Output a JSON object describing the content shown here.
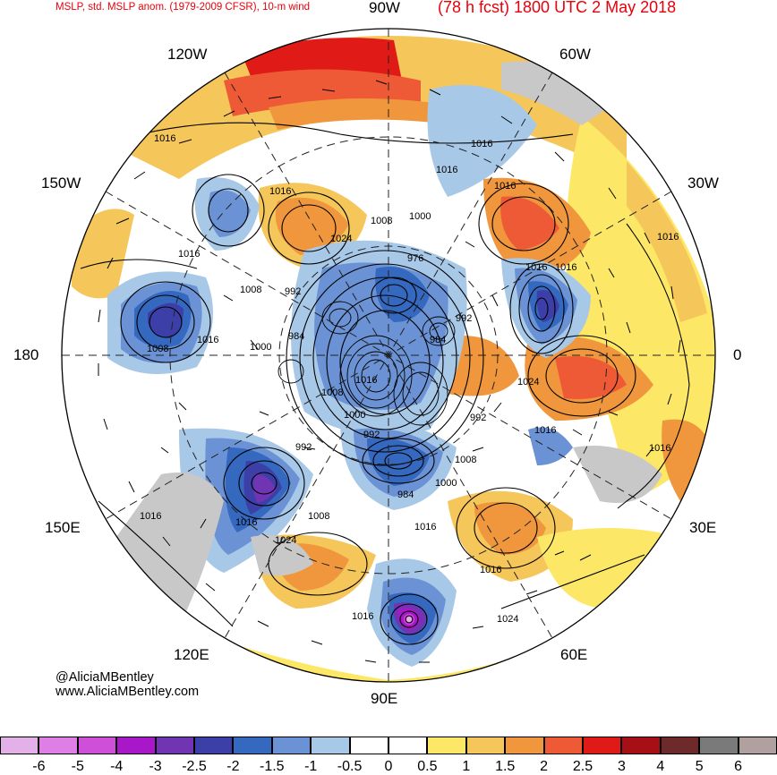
{
  "header": {
    "left_title": "MSLP, std. MSLP anom. (1979-2009 CFSR), 10-m wind",
    "right_title": "(78 h fcst) 1800 UTC 2 May 2018"
  },
  "longitude_labels": {
    "top": "90W",
    "bottom": "90E",
    "left": "180",
    "right": "0",
    "upper_left_1": "120W",
    "upper_left_2": "150W",
    "upper_right_1": "60W",
    "upper_right_2": "30W",
    "lower_left_1": "150E",
    "lower_left_2": "120E",
    "lower_right_1": "30E",
    "lower_right_2": "60E"
  },
  "credit": {
    "handle": "@AliciaMBentley",
    "website": "www.AliciaMBentley.com"
  },
  "isobar_labels": [
    "1016",
    "1016",
    "1016",
    "1016",
    "1008",
    "1000",
    "976",
    "1016",
    "1016",
    "1016",
    "1024",
    "1008",
    "992",
    "984",
    "1016",
    "1000",
    "1008",
    "992",
    "1008",
    "1016",
    "984",
    "992",
    "1024",
    "1016",
    "1008",
    "1016",
    "1000",
    "992",
    "992",
    "984",
    "1000",
    "1008",
    "1016",
    "1016",
    "1016",
    "1016",
    "1024",
    "1024",
    "1016",
    "1016",
    "1016"
  ],
  "colorbar": {
    "levels": [
      {
        "label": "-6",
        "color": "#e3b0e8"
      },
      {
        "label": "-5",
        "color": "#dd7fe4"
      },
      {
        "label": "-4",
        "color": "#d04fd9"
      },
      {
        "label": "-3",
        "color": "#a817c8"
      },
      {
        "label": "-2.5",
        "color": "#7134b3"
      },
      {
        "label": "-2",
        "color": "#3d3fa8"
      },
      {
        "label": "-1.5",
        "color": "#3568bf"
      },
      {
        "label": "-1",
        "color": "#6a92d4"
      },
      {
        "label": "-0.5",
        "color": "#a8c8e8"
      },
      {
        "label": "0",
        "color": "#ffffff"
      },
      {
        "label": "0.5",
        "color": "#ffffff"
      },
      {
        "label": "1",
        "color": "#fde766"
      },
      {
        "label": "1.5",
        "color": "#f5c65a"
      },
      {
        "label": "2",
        "color": "#f0973d"
      },
      {
        "label": "2.5",
        "color": "#ee5a36"
      },
      {
        "label": "3",
        "color": "#e01b17"
      },
      {
        "label": "4",
        "color": "#a50f15"
      },
      {
        "label": "5",
        "color": "#6e2a2a"
      },
      {
        "label": "6",
        "color": "#7a7a7a"
      }
    ],
    "last_box_color": "#b0a0a0"
  },
  "colors": {
    "land_gray": "#c8c8c8",
    "title_red": "#e8000b"
  }
}
